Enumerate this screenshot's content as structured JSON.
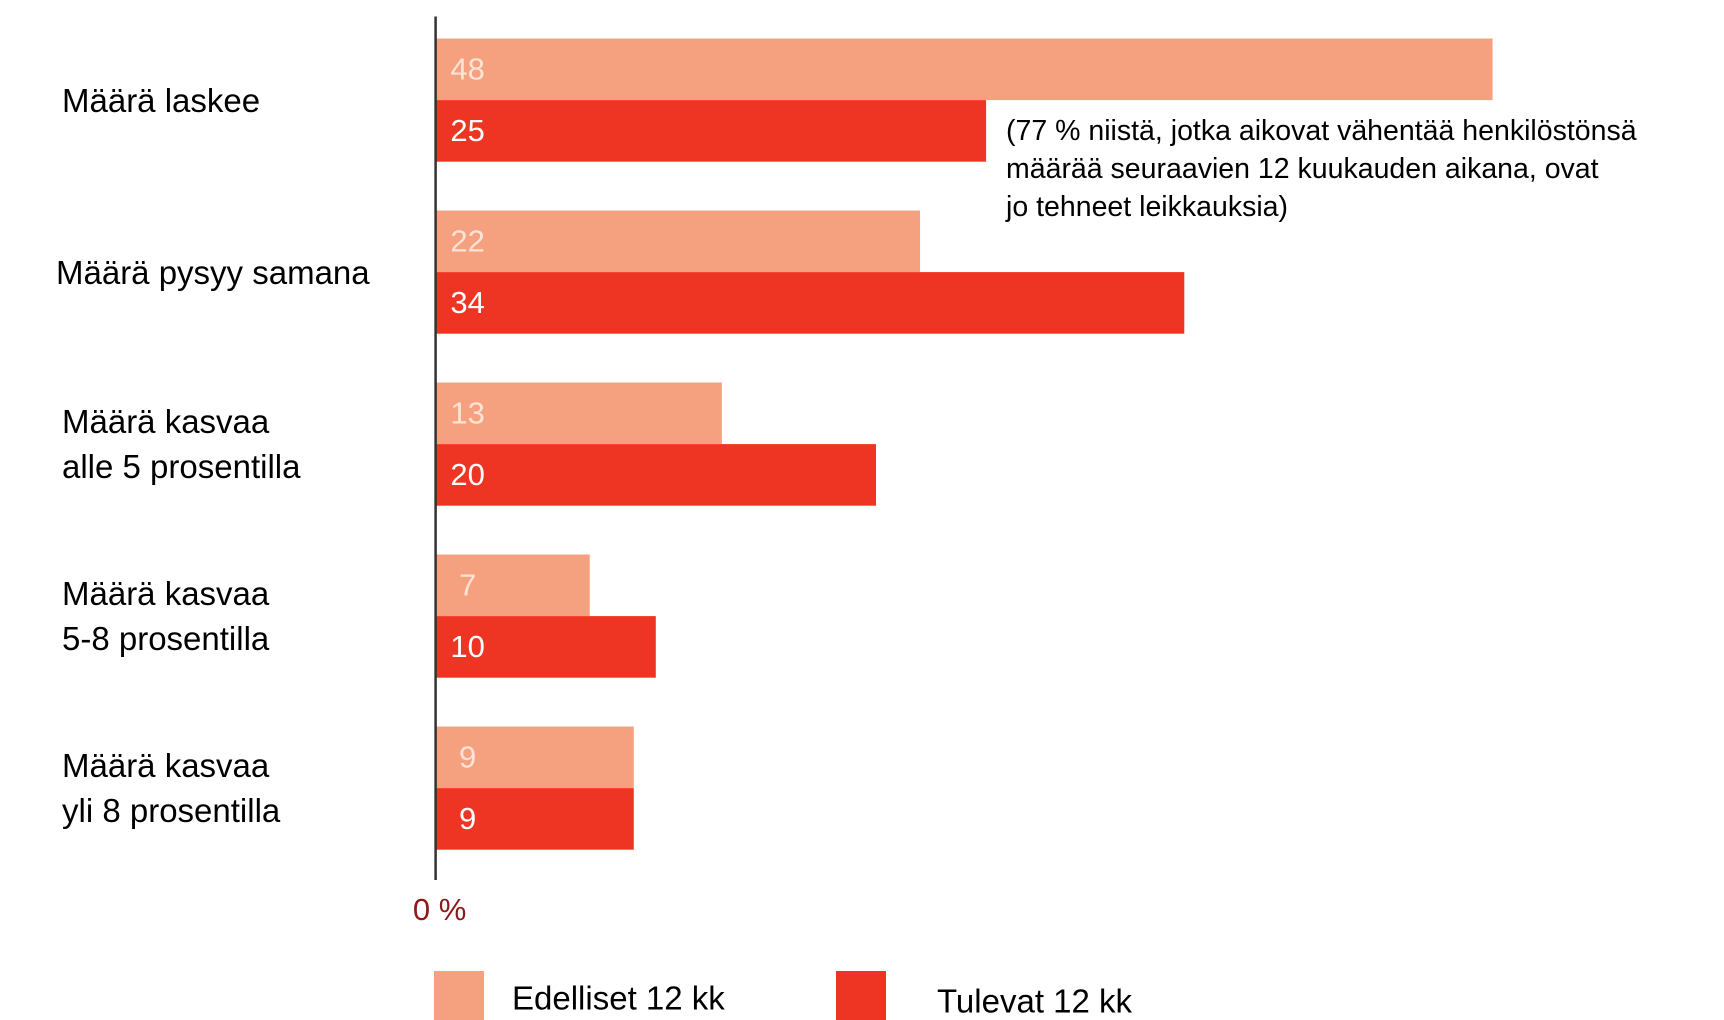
{
  "chart_data": {
    "type": "bar",
    "orientation": "horizontal",
    "categories": [
      "Määrä laskee",
      "Määrä pysyy samana",
      "Määrä kasvaa\nalle 5 prosentilla",
      "Määrä kasvaa\n5-8 prosentilla",
      "Määrä kasvaa\nyli 8 prosentilla"
    ],
    "series": [
      {
        "name": "Edelliset 12 kk",
        "color": "#f5a07e",
        "values": [
          48,
          22,
          13,
          7,
          9
        ]
      },
      {
        "name": "Tulevat 12 kk",
        "color": "#ee3524",
        "values": [
          25,
          34,
          20,
          10,
          9
        ]
      }
    ],
    "xlim": [
      0,
      58
    ],
    "xticks": [
      {
        "value": 0,
        "label": "0 %"
      }
    ],
    "annotation": "(77 % niistä, jotka aikovat vähentää henkilöstönsä\nmäärää seuraavien 12 kuukauden aikana, ovat\njo tehneet leikkauksia)",
    "legend": "bottom"
  }
}
